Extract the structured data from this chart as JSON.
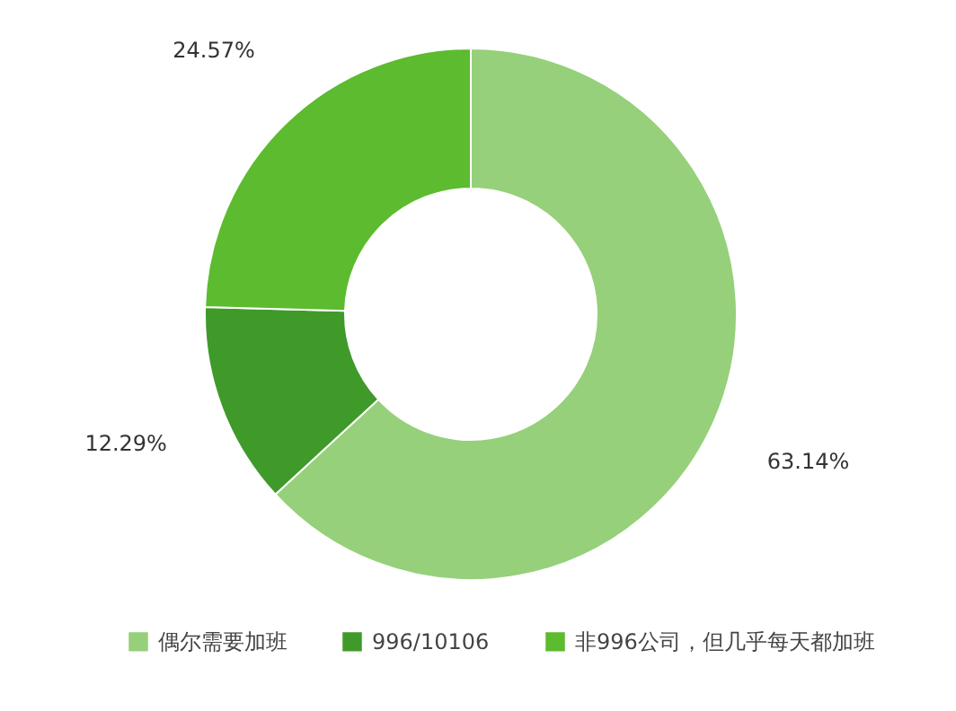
{
  "chart_data": {
    "type": "donut",
    "categories": [
      "偶尔需要加班",
      "996/10106",
      "非996公司，但几乎每天都加班"
    ],
    "values": [
      63.14,
      12.29,
      24.57
    ],
    "colors": [
      "#96d07a",
      "#3f9a2a",
      "#5cbb2e"
    ],
    "value_labels": [
      "63.14%",
      "12.29%",
      "24.57%"
    ],
    "legend": "bottom"
  }
}
